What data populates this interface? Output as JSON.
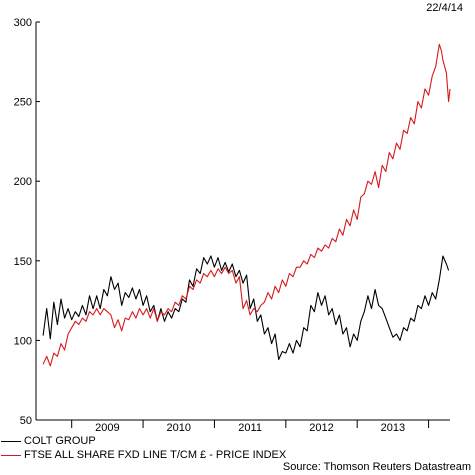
{
  "date": "22/4/14",
  "source": "Source: Thomson Reuters Datastream",
  "legend": [
    {
      "label": "COLT GROUP",
      "color": "#000000"
    },
    {
      "label": "FTSE ALL SHARE FXD LINE T/CM £ - PRICE INDEX",
      "color": "#d7191c"
    }
  ],
  "chart_data": {
    "type": "line",
    "ylim": [
      50,
      300
    ],
    "yticks": [
      50,
      100,
      150,
      200,
      250,
      300
    ],
    "xlim": [
      2008.5,
      2014.3
    ],
    "xticks": [
      "2009",
      "2010",
      "2011",
      "2012",
      "2013"
    ],
    "grid": false,
    "series": [
      {
        "name": "COLT GROUP",
        "color": "#000000",
        "points": [
          [
            2008.6,
            103
          ],
          [
            2008.65,
            120
          ],
          [
            2008.7,
            101
          ],
          [
            2008.75,
            124
          ],
          [
            2008.8,
            110
          ],
          [
            2008.85,
            126
          ],
          [
            2008.9,
            114
          ],
          [
            2008.95,
            120
          ],
          [
            2009.0,
            113
          ],
          [
            2009.05,
            118
          ],
          [
            2009.1,
            115
          ],
          [
            2009.15,
            122
          ],
          [
            2009.2,
            116
          ],
          [
            2009.25,
            128
          ],
          [
            2009.3,
            120
          ],
          [
            2009.35,
            128
          ],
          [
            2009.4,
            120
          ],
          [
            2009.45,
            132
          ],
          [
            2009.5,
            128
          ],
          [
            2009.55,
            140
          ],
          [
            2009.6,
            132
          ],
          [
            2009.65,
            136
          ],
          [
            2009.7,
            122
          ],
          [
            2009.75,
            130
          ],
          [
            2009.8,
            127
          ],
          [
            2009.85,
            133
          ],
          [
            2009.9,
            126
          ],
          [
            2009.95,
            132
          ],
          [
            2010.0,
            122
          ],
          [
            2010.05,
            128
          ],
          [
            2010.1,
            118
          ],
          [
            2010.15,
            122
          ],
          [
            2010.2,
            112
          ],
          [
            2010.25,
            120
          ],
          [
            2010.3,
            112
          ],
          [
            2010.35,
            118
          ],
          [
            2010.4,
            114
          ],
          [
            2010.45,
            120
          ],
          [
            2010.5,
            118
          ],
          [
            2010.55,
            126
          ],
          [
            2010.6,
            124
          ],
          [
            2010.65,
            138
          ],
          [
            2010.7,
            134
          ],
          [
            2010.75,
            145
          ],
          [
            2010.8,
            142
          ],
          [
            2010.85,
            152
          ],
          [
            2010.9,
            148
          ],
          [
            2010.95,
            153
          ],
          [
            2011.0,
            146
          ],
          [
            2011.05,
            152
          ],
          [
            2011.1,
            144
          ],
          [
            2011.15,
            149
          ],
          [
            2011.2,
            143
          ],
          [
            2011.25,
            148
          ],
          [
            2011.3,
            140
          ],
          [
            2011.35,
            144
          ],
          [
            2011.4,
            136
          ],
          [
            2011.45,
            141
          ],
          [
            2011.5,
            120
          ],
          [
            2011.55,
            126
          ],
          [
            2011.6,
            112
          ],
          [
            2011.65,
            116
          ],
          [
            2011.7,
            104
          ],
          [
            2011.75,
            108
          ],
          [
            2011.8,
            98
          ],
          [
            2011.85,
            104
          ],
          [
            2011.9,
            88
          ],
          [
            2011.95,
            93
          ],
          [
            2012.0,
            92
          ],
          [
            2012.05,
            98
          ],
          [
            2012.1,
            92
          ],
          [
            2012.15,
            100
          ],
          [
            2012.2,
            96
          ],
          [
            2012.25,
            108
          ],
          [
            2012.3,
            106
          ],
          [
            2012.35,
            122
          ],
          [
            2012.4,
            118
          ],
          [
            2012.45,
            130
          ],
          [
            2012.5,
            122
          ],
          [
            2012.55,
            128
          ],
          [
            2012.6,
            116
          ],
          [
            2012.65,
            120
          ],
          [
            2012.7,
            110
          ],
          [
            2012.75,
            116
          ],
          [
            2012.8,
            104
          ],
          [
            2012.85,
            108
          ],
          [
            2012.9,
            96
          ],
          [
            2012.95,
            104
          ],
          [
            2013.0,
            100
          ],
          [
            2013.05,
            112
          ],
          [
            2013.1,
            118
          ],
          [
            2013.15,
            128
          ],
          [
            2013.2,
            120
          ],
          [
            2013.25,
            132
          ],
          [
            2013.3,
            122
          ],
          [
            2013.35,
            120
          ],
          [
            2013.4,
            114
          ],
          [
            2013.45,
            108
          ],
          [
            2013.5,
            102
          ],
          [
            2013.55,
            104
          ],
          [
            2013.6,
            100
          ],
          [
            2013.65,
            108
          ],
          [
            2013.7,
            106
          ],
          [
            2013.75,
            114
          ],
          [
            2013.8,
            112
          ],
          [
            2013.85,
            122
          ],
          [
            2013.9,
            120
          ],
          [
            2013.95,
            128
          ],
          [
            2014.0,
            122
          ],
          [
            2014.05,
            130
          ],
          [
            2014.1,
            126
          ],
          [
            2014.15,
            138
          ],
          [
            2014.2,
            153
          ],
          [
            2014.25,
            148
          ],
          [
            2014.28,
            144
          ]
        ]
      },
      {
        "name": "FTSE ALL SHARE FXD LINE T/CM £ - PRICE INDEX",
        "color": "#d7191c",
        "points": [
          [
            2008.6,
            85
          ],
          [
            2008.65,
            90
          ],
          [
            2008.7,
            84
          ],
          [
            2008.75,
            92
          ],
          [
            2008.8,
            90
          ],
          [
            2008.85,
            98
          ],
          [
            2008.9,
            94
          ],
          [
            2008.95,
            104
          ],
          [
            2009.0,
            108
          ],
          [
            2009.05,
            112
          ],
          [
            2009.1,
            110
          ],
          [
            2009.15,
            114
          ],
          [
            2009.2,
            112
          ],
          [
            2009.25,
            118
          ],
          [
            2009.3,
            116
          ],
          [
            2009.35,
            120
          ],
          [
            2009.4,
            116
          ],
          [
            2009.45,
            120
          ],
          [
            2009.5,
            118
          ],
          [
            2009.55,
            116
          ],
          [
            2009.6,
            108
          ],
          [
            2009.65,
            113
          ],
          [
            2009.7,
            106
          ],
          [
            2009.75,
            114
          ],
          [
            2009.8,
            113
          ],
          [
            2009.85,
            118
          ],
          [
            2009.9,
            114
          ],
          [
            2009.95,
            120
          ],
          [
            2010.0,
            116
          ],
          [
            2010.05,
            120
          ],
          [
            2010.1,
            114
          ],
          [
            2010.15,
            120
          ],
          [
            2010.2,
            112
          ],
          [
            2010.25,
            118
          ],
          [
            2010.3,
            116
          ],
          [
            2010.35,
            120
          ],
          [
            2010.4,
            118
          ],
          [
            2010.45,
            124
          ],
          [
            2010.5,
            122
          ],
          [
            2010.55,
            128
          ],
          [
            2010.6,
            126
          ],
          [
            2010.65,
            134
          ],
          [
            2010.7,
            132
          ],
          [
            2010.75,
            138
          ],
          [
            2010.8,
            136
          ],
          [
            2010.85,
            142
          ],
          [
            2010.9,
            140
          ],
          [
            2010.95,
            144
          ],
          [
            2011.0,
            140
          ],
          [
            2011.05,
            145
          ],
          [
            2011.1,
            142
          ],
          [
            2011.15,
            146
          ],
          [
            2011.2,
            142
          ],
          [
            2011.25,
            144
          ],
          [
            2011.3,
            136
          ],
          [
            2011.35,
            140
          ],
          [
            2011.4,
            120
          ],
          [
            2011.45,
            125
          ],
          [
            2011.5,
            116
          ],
          [
            2011.55,
            120
          ],
          [
            2011.6,
            118
          ],
          [
            2011.65,
            122
          ],
          [
            2011.7,
            124
          ],
          [
            2011.75,
            130
          ],
          [
            2011.8,
            126
          ],
          [
            2011.85,
            134
          ],
          [
            2011.9,
            130
          ],
          [
            2011.95,
            138
          ],
          [
            2012.0,
            134
          ],
          [
            2012.05,
            142
          ],
          [
            2012.1,
            140
          ],
          [
            2012.15,
            146
          ],
          [
            2012.2,
            146
          ],
          [
            2012.25,
            150
          ],
          [
            2012.3,
            148
          ],
          [
            2012.35,
            154
          ],
          [
            2012.4,
            152
          ],
          [
            2012.45,
            158
          ],
          [
            2012.5,
            156
          ],
          [
            2012.55,
            160
          ],
          [
            2012.6,
            158
          ],
          [
            2012.65,
            164
          ],
          [
            2012.7,
            162
          ],
          [
            2012.75,
            170
          ],
          [
            2012.8,
            166
          ],
          [
            2012.85,
            176
          ],
          [
            2012.9,
            172
          ],
          [
            2012.95,
            182
          ],
          [
            2013.0,
            176
          ],
          [
            2013.05,
            190
          ],
          [
            2013.1,
            192
          ],
          [
            2013.15,
            200
          ],
          [
            2013.2,
            198
          ],
          [
            2013.25,
            206
          ],
          [
            2013.3,
            196
          ],
          [
            2013.35,
            210
          ],
          [
            2013.4,
            206
          ],
          [
            2013.45,
            218
          ],
          [
            2013.5,
            214
          ],
          [
            2013.55,
            224
          ],
          [
            2013.6,
            220
          ],
          [
            2013.65,
            232
          ],
          [
            2013.7,
            230
          ],
          [
            2013.75,
            240
          ],
          [
            2013.8,
            236
          ],
          [
            2013.85,
            250
          ],
          [
            2013.9,
            246
          ],
          [
            2013.95,
            258
          ],
          [
            2014.0,
            254
          ],
          [
            2014.05,
            266
          ],
          [
            2014.1,
            272
          ],
          [
            2014.15,
            286
          ],
          [
            2014.18,
            282
          ],
          [
            2014.2,
            276
          ],
          [
            2014.25,
            268
          ],
          [
            2014.28,
            250
          ],
          [
            2014.3,
            258
          ]
        ]
      }
    ]
  }
}
